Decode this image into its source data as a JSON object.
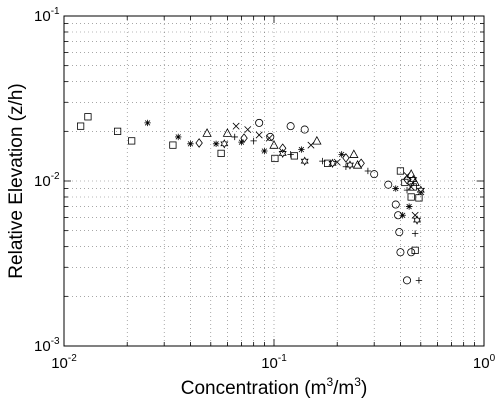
{
  "chart_data": {
    "type": "scatter",
    "title": "",
    "xlabel": {
      "main": "Concentration (m",
      "sup1": "3",
      "mid": "/m",
      "sup2": "3",
      "tail": ")"
    },
    "ylabel": "Relative Elevation (z/h)",
    "x_scale": "log",
    "y_scale": "log",
    "xlim": [
      0.01,
      1
    ],
    "ylim": [
      0.001,
      0.1
    ],
    "grid": true,
    "x_ticks": [
      {
        "value": 0.01,
        "base": "10",
        "exp": "-2"
      },
      {
        "value": 0.1,
        "base": "10",
        "exp": "-1"
      },
      {
        "value": 1,
        "base": "10",
        "exp": "0"
      }
    ],
    "y_ticks": [
      {
        "value": 0.001,
        "base": "10",
        "exp": "-3"
      },
      {
        "value": 0.01,
        "base": "10",
        "exp": "-2"
      },
      {
        "value": 0.1,
        "base": "10",
        "exp": "-1"
      }
    ],
    "series": [
      {
        "marker": "square",
        "x": [
          0.012,
          0.013,
          0.018,
          0.021,
          0.033,
          0.056,
          0.101,
          0.125,
          0.18,
          0.4,
          0.42,
          0.45,
          0.46,
          0.47,
          0.49
        ],
        "y": [
          0.0215,
          0.0245,
          0.02,
          0.0175,
          0.0165,
          0.0147,
          0.0137,
          0.0142,
          0.0128,
          0.0115,
          0.0098,
          0.008,
          0.0092,
          0.0038,
          0.0079
        ]
      },
      {
        "marker": "star",
        "x": [
          0.025,
          0.035,
          0.04,
          0.053,
          0.07,
          0.09,
          0.135,
          0.21,
          0.38,
          0.41,
          0.44
        ],
        "y": [
          0.0225,
          0.0185,
          0.0168,
          0.0168,
          0.0172,
          0.0152,
          0.0155,
          0.0145,
          0.009,
          0.0062,
          0.007
        ]
      },
      {
        "marker": "triangle",
        "x": [
          0.048,
          0.06,
          0.1,
          0.16,
          0.24,
          0.25,
          0.45,
          0.47
        ],
        "y": [
          0.0195,
          0.0195,
          0.0165,
          0.0175,
          0.0145,
          0.0125,
          0.011,
          0.0098
        ]
      },
      {
        "marker": "diamond",
        "x": [
          0.044,
          0.072,
          0.11,
          0.22,
          0.26,
          0.43
        ],
        "y": [
          0.017,
          0.0182,
          0.0158,
          0.0138,
          0.0128,
          0.0102
        ]
      },
      {
        "marker": "circle",
        "x": [
          0.085,
          0.096,
          0.12,
          0.14,
          0.3,
          0.35,
          0.38,
          0.39,
          0.395,
          0.4,
          0.43,
          0.45
        ],
        "y": [
          0.0225,
          0.0185,
          0.0215,
          0.0205,
          0.011,
          0.0095,
          0.0072,
          0.0062,
          0.0049,
          0.0037,
          0.0025,
          0.0037
        ]
      },
      {
        "marker": "x",
        "x": [
          0.066,
          0.075,
          0.085,
          0.095,
          0.15,
          0.2,
          0.43,
          0.45,
          0.47,
          0.5
        ],
        "y": [
          0.0215,
          0.0205,
          0.019,
          0.0182,
          0.0165,
          0.013,
          0.0108,
          0.0092,
          0.0062,
          0.0086
        ]
      },
      {
        "marker": "plus",
        "x": [
          0.065,
          0.08,
          0.12,
          0.17,
          0.22,
          0.28,
          0.43,
          0.47,
          0.49
        ],
        "y": [
          0.0185,
          0.0175,
          0.0145,
          0.0132,
          0.0122,
          0.0115,
          0.0088,
          0.0048,
          0.0025
        ]
      },
      {
        "marker": "hexagram",
        "x": [
          0.058,
          0.11,
          0.14,
          0.19,
          0.23,
          0.46,
          0.48,
          0.5
        ],
        "y": [
          0.0168,
          0.0147,
          0.0132,
          0.0128,
          0.0125,
          0.0102,
          0.0058,
          0.0088
        ]
      }
    ]
  }
}
